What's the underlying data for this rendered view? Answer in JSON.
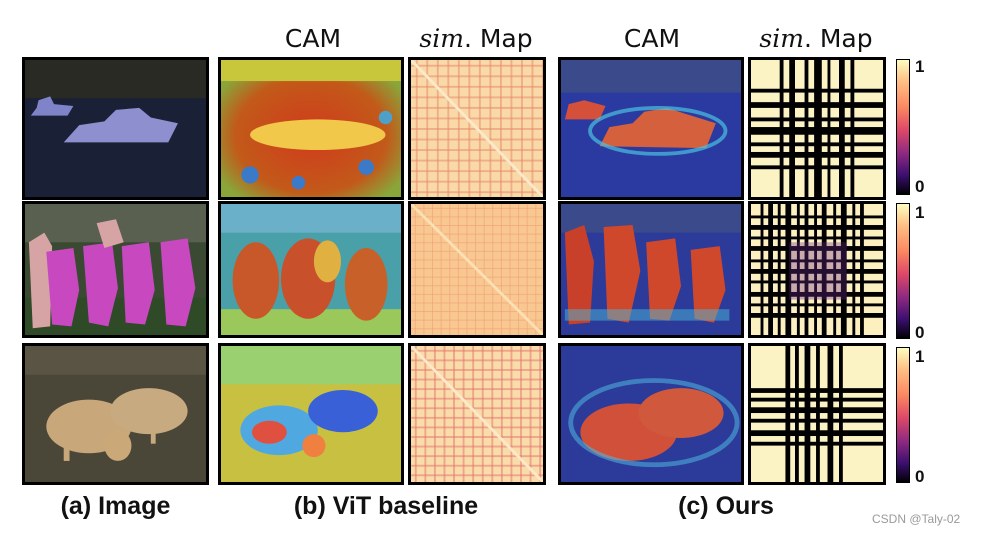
{
  "headers": {
    "cam_baseline": "CAM",
    "sim_baseline_italic": "sim",
    "sim_baseline_rest": ". Map",
    "cam_ours": "CAM",
    "sim_ours_italic": "sim",
    "sim_ours_rest": ". Map"
  },
  "captions": {
    "image": "(a) Image",
    "baseline": "(b) ViT baseline",
    "ours": "(c) Ours"
  },
  "colorbar": {
    "max_label": "1",
    "min_label": "0"
  },
  "watermark": "CSDN @Taly-02",
  "rows": [
    "boats",
    "horses",
    "sheep"
  ]
}
